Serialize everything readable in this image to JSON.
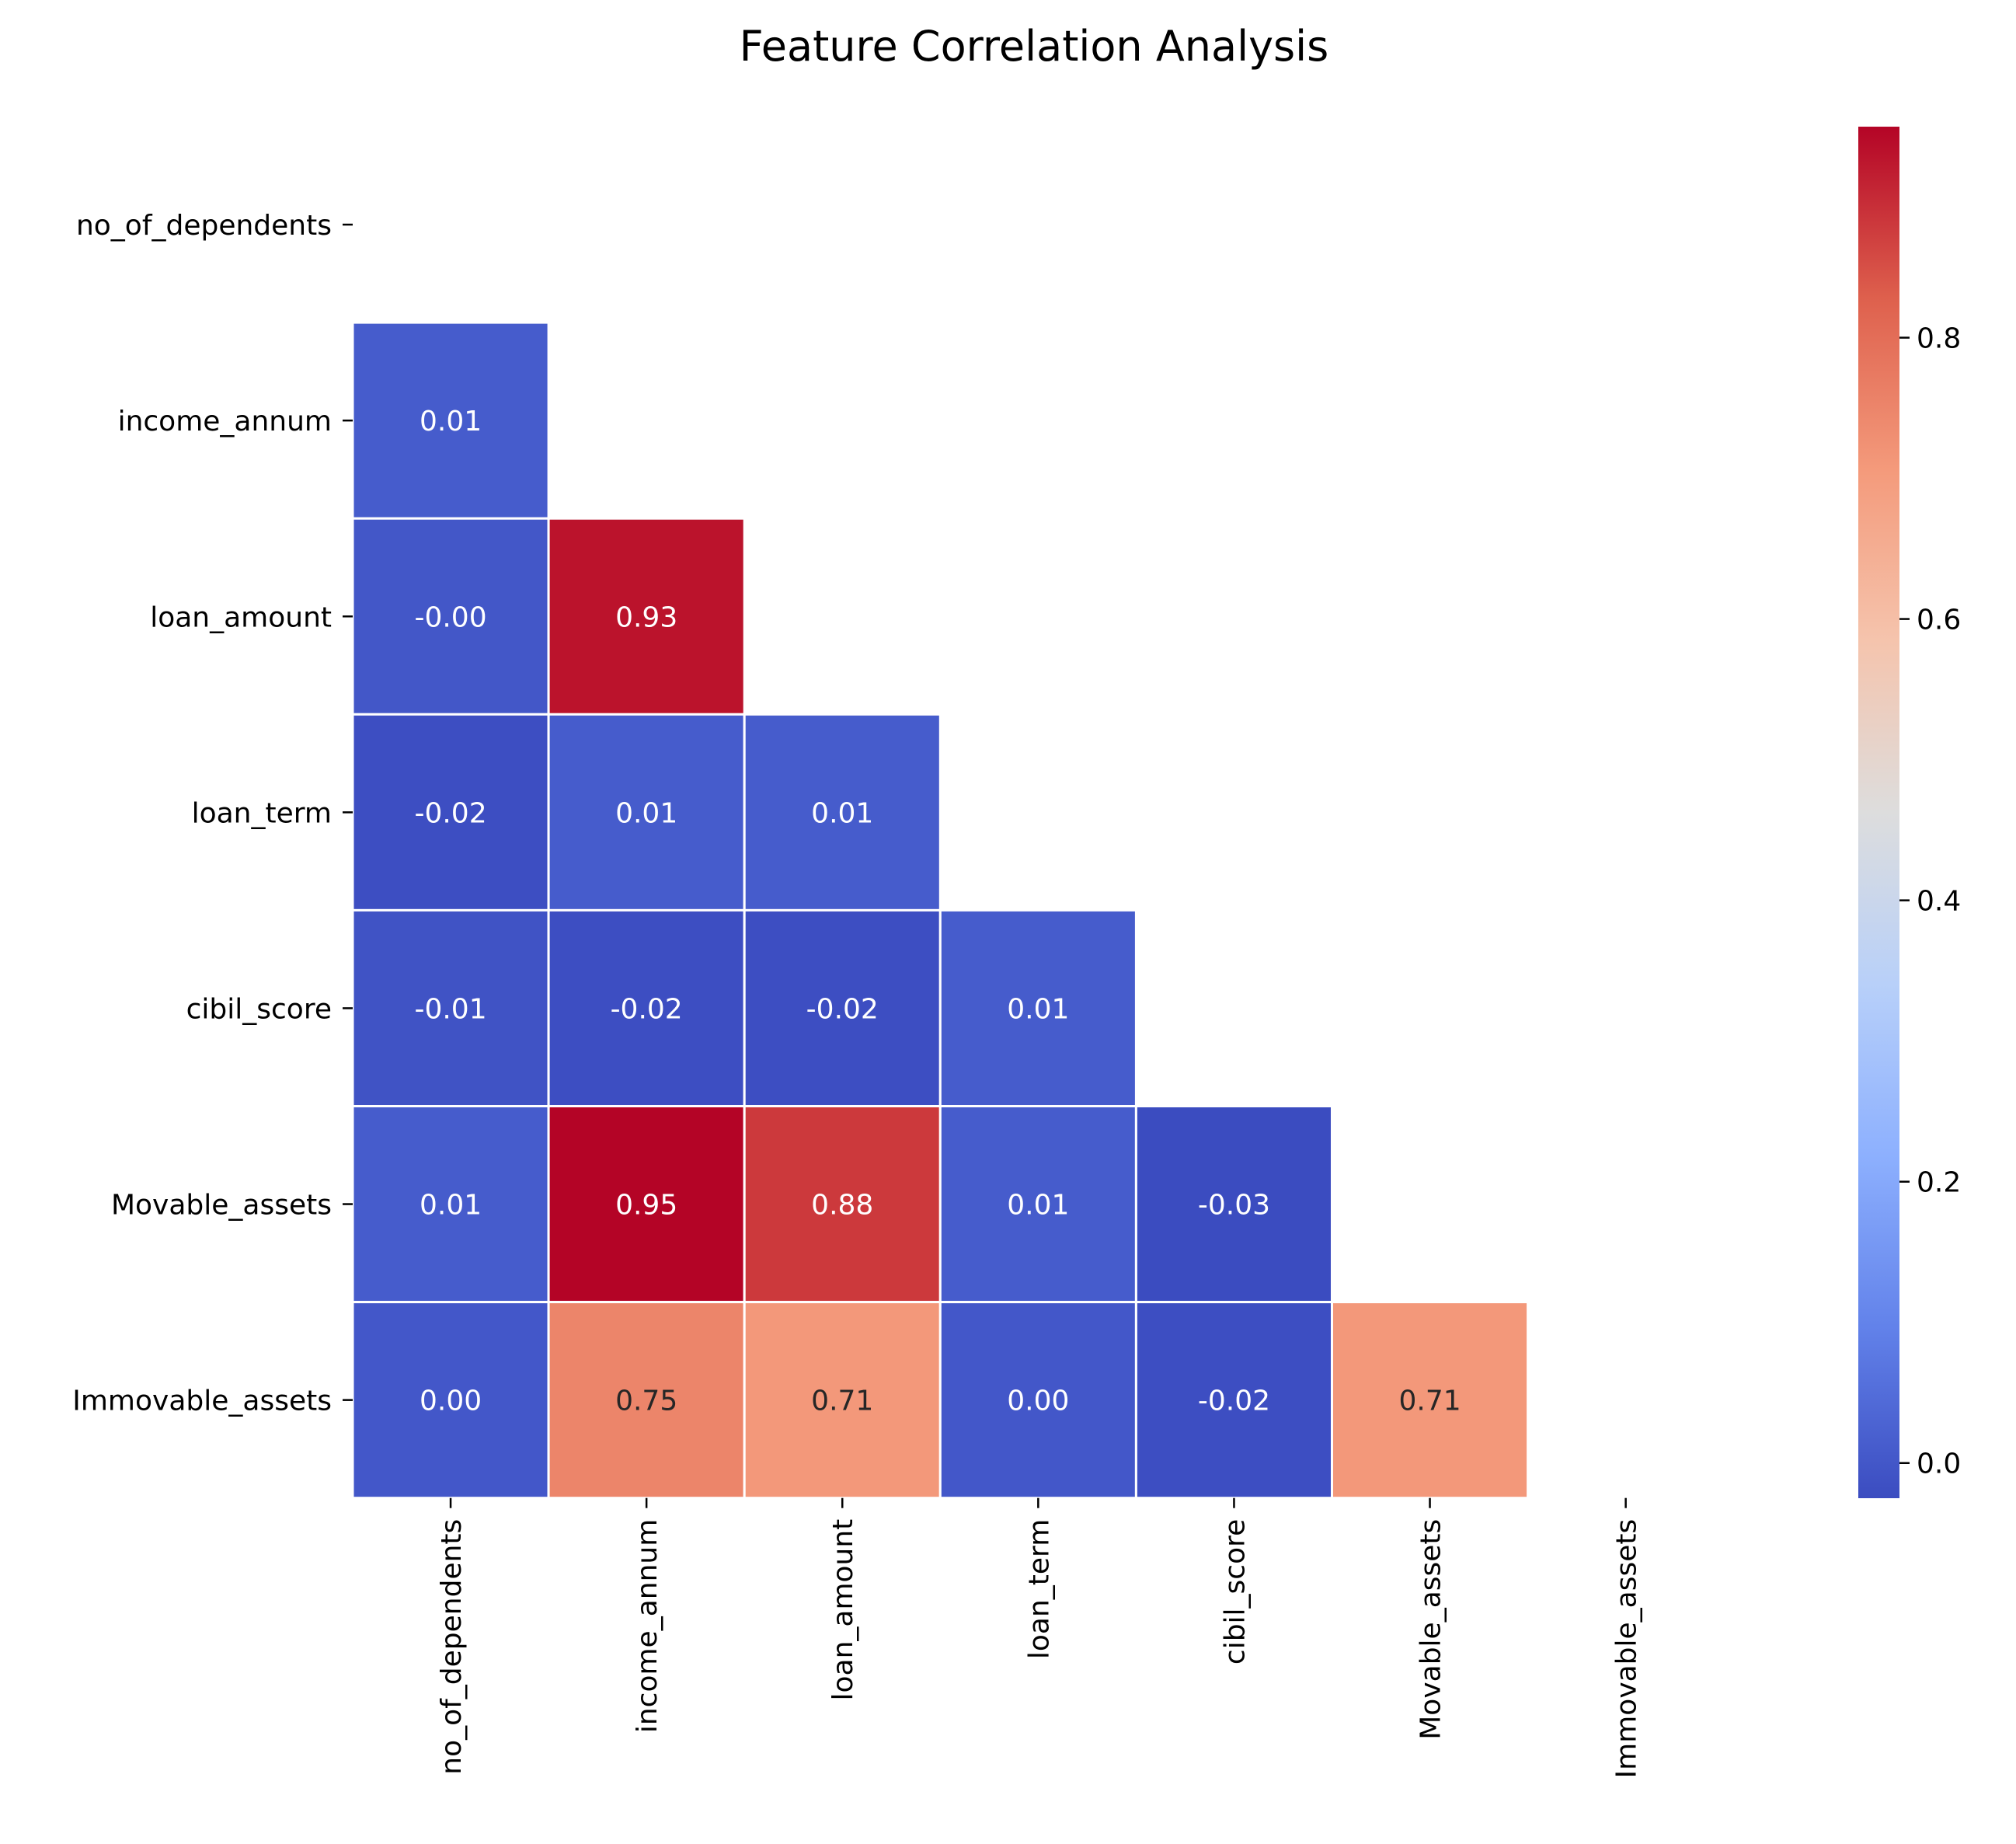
{
  "chart_data": {
    "type": "heatmap",
    "title": "Feature Correlation Analysis",
    "xlabel": "",
    "ylabel": "",
    "features": [
      "no_of_dependents",
      "income_annum",
      "loan_amount",
      "loan_term",
      "cibil_score",
      "Movable_assets",
      "Immovable_assets"
    ],
    "mask": "upper-triangle-including-diagonal",
    "colormap": "coolwarm",
    "cells": [
      {
        "row": "income_annum",
        "col": "no_of_dependents",
        "value": 0.01,
        "label": "0.01"
      },
      {
        "row": "loan_amount",
        "col": "no_of_dependents",
        "value": -0.001,
        "label": "-0.00"
      },
      {
        "row": "loan_amount",
        "col": "income_annum",
        "value": 0.93,
        "label": "0.93"
      },
      {
        "row": "loan_term",
        "col": "no_of_dependents",
        "value": -0.02,
        "label": "-0.02"
      },
      {
        "row": "loan_term",
        "col": "income_annum",
        "value": 0.01,
        "label": "0.01"
      },
      {
        "row": "loan_term",
        "col": "loan_amount",
        "value": 0.01,
        "label": "0.01"
      },
      {
        "row": "cibil_score",
        "col": "no_of_dependents",
        "value": -0.01,
        "label": "-0.01"
      },
      {
        "row": "cibil_score",
        "col": "income_annum",
        "value": -0.02,
        "label": "-0.02"
      },
      {
        "row": "cibil_score",
        "col": "loan_amount",
        "value": -0.02,
        "label": "-0.02"
      },
      {
        "row": "cibil_score",
        "col": "loan_term",
        "value": 0.01,
        "label": "0.01"
      },
      {
        "row": "Movable_assets",
        "col": "no_of_dependents",
        "value": 0.01,
        "label": "0.01"
      },
      {
        "row": "Movable_assets",
        "col": "income_annum",
        "value": 0.95,
        "label": "0.95"
      },
      {
        "row": "Movable_assets",
        "col": "loan_amount",
        "value": 0.88,
        "label": "0.88"
      },
      {
        "row": "Movable_assets",
        "col": "loan_term",
        "value": 0.01,
        "label": "0.01"
      },
      {
        "row": "Movable_assets",
        "col": "cibil_score",
        "value": -0.03,
        "label": "-0.03"
      },
      {
        "row": "Immovable_assets",
        "col": "no_of_dependents",
        "value": 0.0,
        "label": "0.00"
      },
      {
        "row": "Immovable_assets",
        "col": "income_annum",
        "value": 0.75,
        "label": "0.75"
      },
      {
        "row": "Immovable_assets",
        "col": "loan_amount",
        "value": 0.71,
        "label": "0.71"
      },
      {
        "row": "Immovable_assets",
        "col": "loan_term",
        "value": 0.0,
        "label": "0.00"
      },
      {
        "row": "Immovable_assets",
        "col": "cibil_score",
        "value": -0.02,
        "label": "-0.02"
      },
      {
        "row": "Immovable_assets",
        "col": "Movable_assets",
        "value": 0.71,
        "label": "0.71"
      }
    ],
    "colorbar": {
      "range": [
        -0.025,
        0.95
      ],
      "ticks": [
        0.0,
        0.2,
        0.4,
        0.6,
        0.8
      ],
      "tick_labels": [
        "0.0",
        "0.2",
        "0.4",
        "0.6",
        "0.8"
      ]
    },
    "grid": false,
    "legend": "colorbar-right"
  }
}
